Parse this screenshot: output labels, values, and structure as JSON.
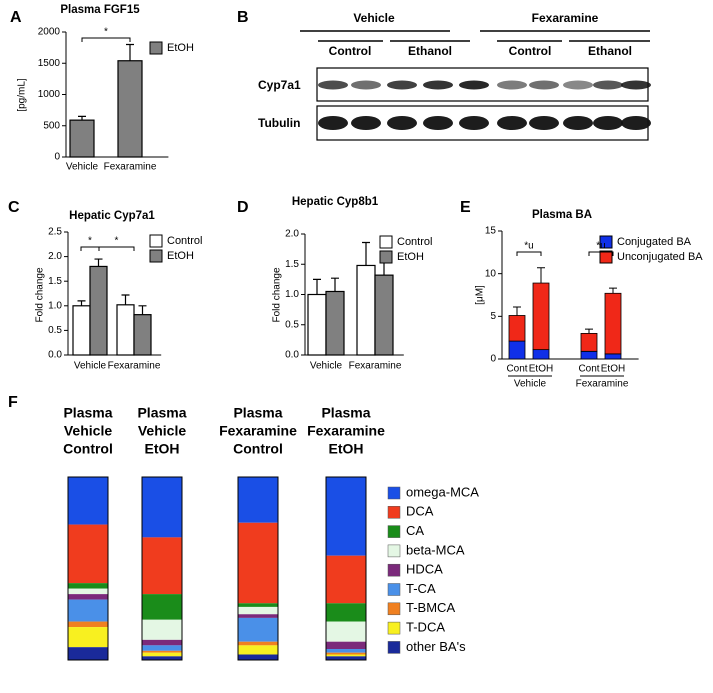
{
  "panel_labels": [
    "A",
    "B",
    "C",
    "D",
    "E",
    "F"
  ],
  "blot": {
    "groups": [
      "Vehicle",
      "Fexaramine"
    ],
    "subgroups": [
      "Control",
      "Ethanol",
      "Control",
      "Ethanol"
    ],
    "rows": [
      "Cyp7a1",
      "Tubulin"
    ]
  },
  "chart_data": [
    {
      "type": "bar",
      "title": "Plasma FGF15",
      "y_label": "[pg/mL]",
      "categories": [
        "Vehicle",
        "Fexaramine"
      ],
      "series": [
        {
          "name": "EtOH",
          "color": "#808080",
          "values": [
            590,
            1540
          ],
          "errors": [
            60,
            260
          ]
        }
      ],
      "ylim": [
        0,
        2000
      ],
      "yticks": [
        0,
        500,
        1000,
        1500,
        2000
      ],
      "annotations": [
        "*"
      ]
    },
    {
      "type": "bar",
      "title": "Hepatic Cyp7a1",
      "y_label": "Fold change",
      "categories": [
        "Vehicle",
        "Fexaramine"
      ],
      "series": [
        {
          "name": "Control",
          "color": "#ffffff",
          "values": [
            1.0,
            1.02
          ],
          "errors": [
            0.1,
            0.2
          ]
        },
        {
          "name": "EtOH",
          "color": "#808080",
          "values": [
            1.8,
            0.82
          ],
          "errors": [
            0.15,
            0.18
          ]
        }
      ],
      "ylim": [
        0,
        2.5
      ],
      "yticks": [
        {
          "value": 0,
          "label": "0.0"
        },
        0.5,
        {
          "value": 1,
          "label": "1.0"
        },
        1.5,
        {
          "value": 2,
          "label": "2.0"
        },
        2.5
      ],
      "annotations": [
        "*",
        "*"
      ]
    },
    {
      "type": "bar",
      "title": "Hepatic Cyp8b1",
      "y_label": "Fold change",
      "categories": [
        "Vehicle",
        "Fexaramine"
      ],
      "series": [
        {
          "name": "Control",
          "color": "#ffffff",
          "values": [
            1.0,
            1.48
          ],
          "errors": [
            0.25,
            0.38
          ]
        },
        {
          "name": "EtOH",
          "color": "#808080",
          "values": [
            1.05,
            1.32
          ],
          "errors": [
            0.22,
            0.22
          ]
        }
      ],
      "ylim": [
        0,
        2.0
      ],
      "yticks": [
        {
          "value": 0,
          "label": "0.0"
        },
        0.5,
        {
          "value": 1,
          "label": "1.0"
        },
        1.5,
        {
          "value": 2,
          "label": "2.0"
        }
      ]
    },
    {
      "type": "bar",
      "stacked": true,
      "title": "Plasma BA",
      "y_label": "[μM]",
      "categories": [
        "Cont",
        "EtOH",
        "Cont",
        "EtOH"
      ],
      "groups": [
        "Vehicle",
        "Fexaramine"
      ],
      "series": [
        {
          "name": "Conjugated BA",
          "color": "#1030e8",
          "values": [
            2.1,
            1.1,
            0.9,
            0.6
          ]
        },
        {
          "name": "Unconjugated BA",
          "color": "#f02818",
          "values": [
            3.0,
            7.8,
            2.1,
            7.1
          ],
          "errors": [
            1.0,
            1.8,
            0.5,
            0.6
          ]
        }
      ],
      "ylim": [
        0,
        15
      ],
      "yticks": [
        0,
        5,
        10,
        15
      ],
      "annotations": [
        "*u",
        "*u"
      ]
    },
    {
      "type": "bar",
      "stacked": true,
      "categories": [
        [
          "Plasma",
          "Vehicle",
          "Control"
        ],
        [
          "Plasma",
          "Vehicle",
          "EtOH"
        ],
        [
          "Plasma",
          "Fexaramine",
          "Control"
        ],
        [
          "Plasma",
          "Fexaramine",
          "EtOH"
        ]
      ],
      "series": [
        {
          "name": "omega-MCA",
          "color": "#1a4fe6",
          "values": [
            26,
            33,
            25,
            43
          ]
        },
        {
          "name": "DCA",
          "color": "#f03c1e",
          "values": [
            32,
            31,
            44,
            26
          ]
        },
        {
          "name": "CA",
          "color": "#1a8c1a",
          "values": [
            3,
            14,
            2,
            10
          ]
        },
        {
          "name": "beta-MCA",
          "color": "#e4f7e4",
          "values": [
            3,
            11,
            4,
            11
          ]
        },
        {
          "name": "HDCA",
          "color": "#7b2a7b",
          "values": [
            3,
            3,
            2,
            4
          ]
        },
        {
          "name": "T-CA",
          "color": "#4a90e8",
          "values": [
            12,
            3,
            13,
            2
          ]
        },
        {
          "name": "T-BMCA",
          "color": "#f08020",
          "values": [
            3,
            1,
            2,
            1
          ]
        },
        {
          "name": "T-DCA",
          "color": "#f8f020",
          "values": [
            11,
            2,
            5,
            1
          ]
        },
        {
          "name": "other BA's",
          "color": "#1a2a9a",
          "values": [
            7,
            2,
            3,
            2
          ]
        }
      ]
    }
  ]
}
